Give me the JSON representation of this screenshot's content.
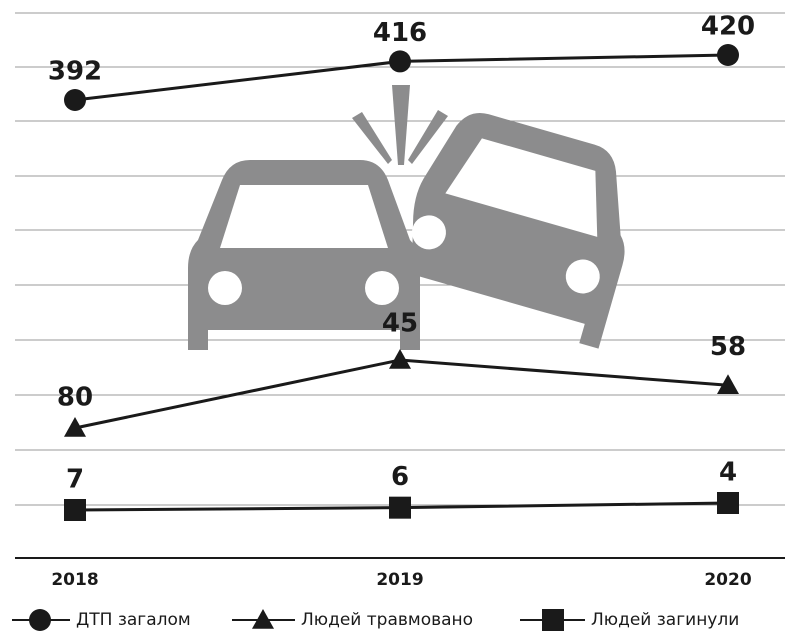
{
  "chart_data": {
    "type": "line",
    "categories": [
      "2018",
      "2019",
      "2020"
    ],
    "grid": true,
    "series": [
      {
        "name": "ДТП загалом",
        "marker": "circle",
        "color": "#1a1a1a",
        "values": [
          392,
          416,
          420
        ]
      },
      {
        "name": "Людей травмовано",
        "marker": "triangle",
        "color": "#1a1a1a",
        "values": [
          80,
          45,
          58
        ]
      },
      {
        "name": "Людей загинули",
        "marker": "square",
        "color": "#1a1a1a",
        "values": [
          7,
          6,
          4
        ]
      }
    ]
  }
}
